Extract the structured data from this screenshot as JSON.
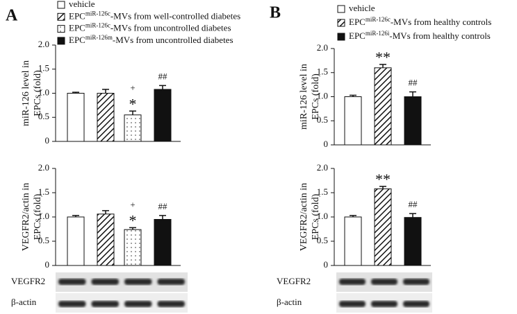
{
  "panels": [
    {
      "label": "A",
      "legend": [
        {
          "prefix": "vehicle",
          "fill": "white"
        },
        {
          "prefix": "EPC",
          "sup": "miR-126c",
          "suffix": "-MVs from well-controlled diabetes",
          "fill": "hatch"
        },
        {
          "prefix": "EPC",
          "sup": "miR-126c",
          "suffix": "-MVs from uncontrolled diabetes",
          "fill": "dots"
        },
        {
          "prefix": "EPC",
          "sup": "miR-126m",
          "suffix": "-MVs from uncontrolled diabetes",
          "fill": "black"
        }
      ],
      "blots": [
        "VEGFR2",
        "β-actin"
      ]
    },
    {
      "label": "B",
      "legend": [
        {
          "prefix": "vehicle",
          "fill": "white"
        },
        {
          "prefix": "EPC",
          "sup": "miR-126c",
          "suffix": "-MVs from healthy controls",
          "fill": "hatch"
        },
        {
          "prefix": "EPC",
          "sup": "miR-126i",
          "suffix": "-MVs from healthy controls",
          "fill": "black"
        }
      ],
      "blots": [
        "VEGFR2",
        "β-actin"
      ]
    }
  ],
  "chart_data": [
    {
      "type": "bar",
      "ylabel": [
        "miR-126 level in",
        "EPCs (fold)"
      ],
      "values": [
        1.0,
        1.0,
        0.55,
        1.08
      ],
      "errors": [
        0.02,
        0.08,
        0.08,
        0.08
      ],
      "annotations": [
        null,
        null,
        [
          "+",
          "*"
        ],
        [
          "##"
        ]
      ],
      "ylim": [
        0,
        2
      ],
      "yticks": [
        0,
        0.5,
        {
          "value": 1,
          "label": "1.0"
        },
        1.5,
        {
          "value": 2,
          "label": "2.0"
        }
      ]
    },
    {
      "type": "bar",
      "ylabel": [
        "VEGFR2/actin in",
        "EPCs (fold)"
      ],
      "values": [
        1.0,
        1.06,
        0.74,
        0.95
      ],
      "errors": [
        0.03,
        0.07,
        0.04,
        0.08
      ],
      "annotations": [
        null,
        null,
        [
          "+",
          "*"
        ],
        [
          "##"
        ]
      ],
      "ylim": [
        0,
        2
      ],
      "yticks": [
        0,
        0.5,
        {
          "value": 1,
          "label": "1.0"
        },
        1.5,
        {
          "value": 2,
          "label": "2.0"
        }
      ]
    },
    {
      "type": "bar",
      "ylabel": [
        "miR-126 level in",
        "EPCs (fold)"
      ],
      "values": [
        1.0,
        1.6,
        1.0
      ],
      "errors": [
        0.03,
        0.07,
        0.1
      ],
      "annotations": [
        null,
        [
          "**"
        ],
        [
          "##"
        ]
      ],
      "ylim": [
        0,
        2
      ],
      "yticks": [
        0,
        0.5,
        {
          "value": 1,
          "label": "1.0"
        },
        1.5,
        {
          "value": 2,
          "label": "2.0"
        }
      ]
    },
    {
      "type": "bar",
      "ylabel": [
        "VEGFR2/actin in",
        "EPCs (fold)"
      ],
      "values": [
        1.0,
        1.58,
        0.99
      ],
      "errors": [
        0.03,
        0.05,
        0.08
      ],
      "annotations": [
        null,
        [
          "**"
        ],
        [
          "##"
        ]
      ],
      "ylim": [
        0,
        2
      ],
      "yticks": [
        0,
        0.5,
        {
          "value": 1,
          "label": "1.0"
        },
        1.5,
        {
          "value": 2,
          "label": "2.0"
        }
      ]
    }
  ]
}
